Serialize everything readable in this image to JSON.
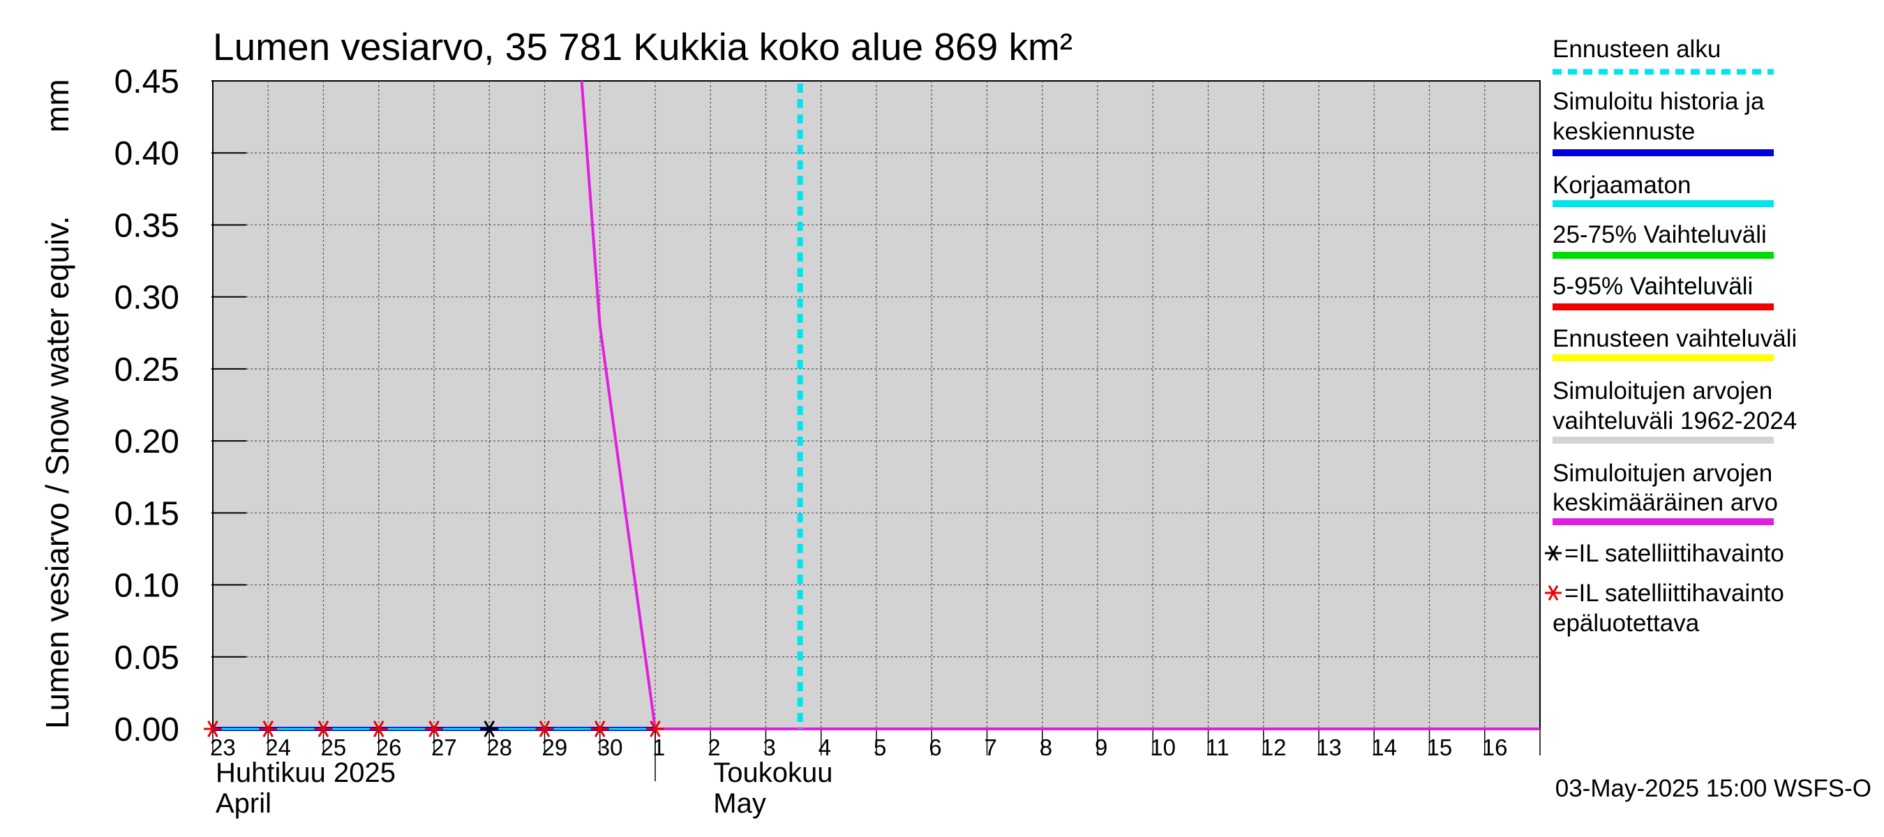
{
  "chart_data": {
    "type": "line",
    "title": "Lumen vesiarvo, 35 781 Kukkia koko alue 869 km²",
    "ylabel": "Lumen vesiarvo / Snow water equiv.",
    "yunit": "mm",
    "ylim": [
      0,
      0.45
    ],
    "yticks": [
      "0.00",
      "0.05",
      "0.10",
      "0.15",
      "0.20",
      "0.25",
      "0.30",
      "0.35",
      "0.40",
      "0.45"
    ],
    "x_start_day": 0,
    "x_end_day": 24,
    "day_labels": [
      "23",
      "24",
      "25",
      "26",
      "27",
      "28",
      "29",
      "30",
      "1",
      "2",
      "3",
      "4",
      "5",
      "6",
      "7",
      "8",
      "9",
      "10",
      "11",
      "12",
      "13",
      "14",
      "15",
      "16"
    ],
    "month_separators": [
      8
    ],
    "month_labels": [
      {
        "day": 0,
        "fi": "Huhtikuu  2025",
        "en": "April"
      },
      {
        "day": 9,
        "fi": "Toukokuu",
        "en": "May"
      }
    ],
    "forecast_start_day": 10.62,
    "series": [
      {
        "name": "Simuloitujen arvojen keskimääräinen arvo",
        "color": "#e020e0",
        "points": [
          [
            6.67,
            0.45
          ],
          [
            7.0,
            0.28
          ],
          [
            8.0,
            0.0
          ],
          [
            24.0,
            0.0
          ]
        ]
      },
      {
        "name": "Simuloitu historia ja keskiennuste",
        "color": "#0000dd",
        "points": [
          [
            0.0,
            0.0
          ],
          [
            8.0,
            0.0
          ]
        ]
      },
      {
        "name": "Korjaamaton",
        "color": "#00e5ee",
        "points": [
          [
            0.0,
            0.0
          ],
          [
            8.0,
            0.0
          ]
        ]
      }
    ],
    "observations": [
      {
        "day": 0,
        "value": 0.0,
        "reliable": false
      },
      {
        "day": 1,
        "value": 0.0,
        "reliable": false
      },
      {
        "day": 2,
        "value": 0.0,
        "reliable": false
      },
      {
        "day": 3,
        "value": 0.0,
        "reliable": false
      },
      {
        "day": 4,
        "value": 0.0,
        "reliable": false
      },
      {
        "day": 5,
        "value": 0.0,
        "reliable": true
      },
      {
        "day": 6,
        "value": 0.0,
        "reliable": false
      },
      {
        "day": 7,
        "value": 0.0,
        "reliable": false
      },
      {
        "day": 8,
        "value": 0.0,
        "reliable": false
      }
    ],
    "legend": [
      {
        "lines": [
          "Ennusteen alku"
        ],
        "color": "#00e5ee",
        "style": "dashed"
      },
      {
        "lines": [
          "Simuloitu historia ja",
          "keskiennuste"
        ],
        "color": "#0000dd",
        "style": "solid"
      },
      {
        "lines": [
          "Korjaamaton"
        ],
        "color": "#00e5ee",
        "style": "solid"
      },
      {
        "lines": [
          "25-75% Vaihteluväli"
        ],
        "color": "#00dd00",
        "style": "solid"
      },
      {
        "lines": [
          "5-95% Vaihteluväli"
        ],
        "color": "#ee0000",
        "style": "solid"
      },
      {
        "lines": [
          "Ennusteen vaihteluväli"
        ],
        "color": "#ffff00",
        "style": "solid"
      },
      {
        "lines": [
          "Simuloitujen arvojen",
          "vaihteluväli 1962-2024"
        ],
        "color": "#d3d3d3",
        "style": "solid"
      },
      {
        "lines": [
          "Simuloitujen arvojen",
          "keskimääräinen arvo"
        ],
        "color": "#e020e0",
        "style": "solid"
      },
      {
        "lines": [
          "=IL satelliittihavainto"
        ],
        "color": "#000000",
        "style": "marker"
      },
      {
        "lines": [
          "=IL satelliittihavainto",
          "epäluotettava"
        ],
        "color": "#ee0000",
        "style": "marker"
      }
    ],
    "timestamp": "03-May-2025 15:00 WSFS-O",
    "plot_background": "#d3d3d3"
  }
}
